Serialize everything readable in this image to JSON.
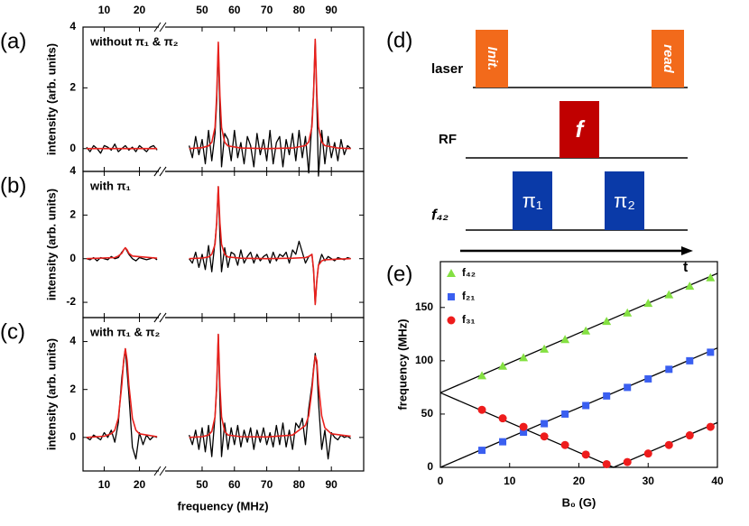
{
  "chart_data": [
    {
      "type": "line",
      "panel_label": "(a)",
      "annotation": "without π₁ & π₂",
      "ylabel": "intensity (arb. units)",
      "xlim": [
        [
          4,
          26
        ],
        [
          38,
          100
        ]
      ],
      "xticks": [
        10,
        20,
        50,
        60,
        70,
        80,
        90
      ],
      "xtick_labels": "top",
      "xbreak": true,
      "ylim": [
        -0.75,
        4
      ],
      "yticks": [
        0,
        2,
        4
      ],
      "series": [
        {
          "color": "#000000",
          "x": [
            5,
            6,
            7,
            8,
            9,
            10,
            11,
            12,
            13,
            14,
            15,
            16,
            17,
            18,
            19,
            20,
            21,
            22,
            23,
            24,
            25,
            46,
            47,
            48,
            49,
            50,
            51,
            52,
            53,
            54,
            54.5,
            55,
            55.5,
            56,
            57,
            58,
            59,
            60,
            61,
            62,
            63,
            64,
            65,
            66,
            67,
            68,
            69,
            70,
            71,
            72,
            73,
            74,
            75,
            76,
            77,
            78,
            79,
            80,
            81,
            82,
            83,
            84,
            84.5,
            85,
            85.5,
            86,
            87,
            88,
            89,
            90,
            91,
            92,
            93,
            94,
            95,
            96
          ],
          "values": [
            0.05,
            -0.1,
            0.1,
            0.0,
            -0.15,
            0.1,
            0.05,
            -0.05,
            0.15,
            -0.1,
            0.0,
            0.1,
            -0.05,
            0.05,
            -0.1,
            0.1,
            0.0,
            -0.1,
            0.05,
            0.1,
            -0.05,
            0.1,
            -0.3,
            0.4,
            -0.2,
            0.3,
            -0.5,
            0.6,
            -0.4,
            0.5,
            1.5,
            3.4,
            1.2,
            -0.6,
            0.5,
            0.3,
            -0.4,
            0.6,
            -0.3,
            0.2,
            -0.5,
            0.4,
            0.1,
            -0.6,
            0.5,
            -0.2,
            0.3,
            -0.4,
            0.6,
            -0.5,
            0.2,
            0.4,
            -0.6,
            0.3,
            -0.2,
            0.5,
            -0.4,
            0.6,
            -0.3,
            0.4,
            -0.8,
            0.9,
            1.9,
            3.6,
            1.5,
            -0.9,
            0.6,
            -0.5,
            0.4,
            -0.3,
            0.2,
            -0.4,
            0.3,
            -0.2,
            0.1,
            0.0
          ]
        },
        {
          "color": "#e8201c",
          "x": [
            5,
            25,
            46,
            50,
            52,
            53,
            54,
            54.5,
            55,
            55.5,
            56,
            57,
            58,
            62,
            70,
            78,
            82,
            83,
            84,
            84.5,
            85,
            85.5,
            86,
            87,
            88,
            92,
            96
          ],
          "values": [
            0,
            0,
            0,
            0.03,
            0.09,
            0.21,
            0.7,
            1.75,
            3.5,
            1.75,
            0.7,
            0.21,
            0.09,
            0.02,
            0,
            0.02,
            0.1,
            0.22,
            0.72,
            1.8,
            3.6,
            1.8,
            0.72,
            0.22,
            0.1,
            0.02,
            0
          ]
        }
      ]
    },
    {
      "type": "line",
      "panel_label": "(b)",
      "annotation": "with π₁",
      "ylabel": "intensity (arb. units)",
      "xlim": [
        [
          4,
          26
        ],
        [
          38,
          100
        ]
      ],
      "xticks": [
        10,
        20,
        50,
        60,
        70,
        80,
        90
      ],
      "xbreak": true,
      "ylim": [
        -2.7,
        4
      ],
      "yticks": [
        -2,
        0,
        2,
        4
      ],
      "series": [
        {
          "color": "#000000",
          "x": [
            5,
            6,
            7,
            8,
            9,
            10,
            11,
            12,
            13,
            14,
            15,
            16,
            17,
            18,
            19,
            20,
            21,
            22,
            23,
            24,
            25,
            46,
            47,
            48,
            49,
            50,
            51,
            52,
            53,
            54,
            54.5,
            55,
            55.5,
            56,
            57,
            58,
            59,
            60,
            61,
            62,
            63,
            64,
            65,
            66,
            67,
            68,
            69,
            70,
            71,
            72,
            73,
            74,
            75,
            76,
            77,
            78,
            79,
            80,
            81,
            82,
            83,
            84,
            84.5,
            85,
            85.5,
            86,
            87,
            88,
            89,
            90,
            91,
            92,
            93,
            94,
            95,
            96
          ],
          "values": [
            0,
            -0.05,
            0.05,
            -0.1,
            0.05,
            0.0,
            -0.05,
            0.1,
            0.0,
            0.05,
            0.3,
            0.5,
            0.2,
            0.0,
            -0.1,
            0.05,
            0.0,
            -0.05,
            0.0,
            0.05,
            -0.05,
            0.0,
            -0.2,
            0.3,
            -0.4,
            0.2,
            -0.5,
            0.6,
            -0.6,
            0.8,
            1.6,
            3.3,
            1.0,
            -0.6,
            0.5,
            -0.4,
            0.3,
            0.2,
            -0.3,
            0.4,
            -0.2,
            0.1,
            0.3,
            -0.2,
            0.2,
            -0.1,
            0.1,
            0.2,
            -0.2,
            0.3,
            -0.1,
            0.2,
            0.1,
            0.3,
            -0.2,
            0.4,
            0.2,
            0.8,
            0.3,
            -0.2,
            0.1,
            0.2,
            -0.6,
            -2.1,
            -1.0,
            -0.3,
            0.2,
            -0.1,
            0.1,
            0.0,
            -0.1,
            0.05,
            0.0,
            -0.05,
            0.05,
            0.0
          ]
        },
        {
          "color": "#e8201c",
          "x": [
            5,
            13,
            14,
            15,
            15.5,
            16,
            16.5,
            17,
            18,
            25,
            46,
            50,
            52,
            53,
            54,
            54.5,
            55,
            55.5,
            56,
            57,
            58,
            62,
            70,
            78,
            82,
            83,
            84,
            84.5,
            85,
            85.5,
            86,
            87,
            88,
            92,
            96
          ],
          "values": [
            0,
            0.05,
            0.12,
            0.25,
            0.4,
            0.5,
            0.4,
            0.25,
            0.12,
            0.02,
            0,
            0.03,
            0.08,
            0.2,
            0.66,
            1.65,
            3.3,
            1.65,
            0.66,
            0.2,
            0.08,
            0.02,
            0,
            0.02,
            0.05,
            0.1,
            0.2,
            -0.5,
            -2.1,
            -1.0,
            -0.3,
            -0.1,
            -0.05,
            -0.02,
            0
          ]
        }
      ]
    },
    {
      "type": "line",
      "panel_label": "(c)",
      "annotation": "with π₁ & π₂",
      "ylabel": "intensity (arb. units)",
      "xlabel": "frequency (MHz)",
      "xlim": [
        [
          4,
          26
        ],
        [
          38,
          100
        ]
      ],
      "xticks": [
        10,
        20,
        50,
        60,
        70,
        80,
        90
      ],
      "xtick_labels": "bottom",
      "xbreak": true,
      "ylim": [
        -1.4,
        5
      ],
      "yticks": [
        0,
        2,
        4
      ],
      "series": [
        {
          "color": "#000000",
          "x": [
            5,
            6,
            7,
            8,
            9,
            10,
            11,
            12,
            13,
            14,
            15,
            16,
            17,
            18,
            19,
            20,
            21,
            22,
            23,
            24,
            25,
            46,
            47,
            48,
            49,
            50,
            51,
            52,
            53,
            54,
            54.5,
            55,
            55.5,
            56,
            57,
            58,
            59,
            60,
            61,
            62,
            63,
            64,
            65,
            66,
            67,
            68,
            69,
            70,
            71,
            72,
            73,
            74,
            75,
            76,
            77,
            78,
            79,
            80,
            81,
            82,
            83,
            84,
            84.5,
            85,
            85.5,
            86,
            87,
            88,
            89,
            90,
            91,
            92,
            93,
            94,
            95,
            96
          ],
          "values": [
            0,
            -0.1,
            0.1,
            0,
            -0.1,
            0.2,
            0,
            0.3,
            -0.2,
            0.6,
            2.5,
            3.7,
            1.8,
            -0.4,
            -0.9,
            0.2,
            -0.3,
            0.1,
            -0.1,
            0.05,
            0,
            0.1,
            -0.3,
            0.3,
            -0.5,
            0.4,
            -0.6,
            0.5,
            -0.8,
            0.9,
            2.0,
            4.3,
            1.5,
            -0.8,
            0.6,
            -0.5,
            0.4,
            -0.3,
            0.5,
            -0.4,
            0.3,
            -0.2,
            0.4,
            -0.5,
            0.3,
            -0.2,
            0.4,
            -0.3,
            0.2,
            -0.4,
            0.5,
            -0.3,
            0.6,
            -0.4,
            0.3,
            -0.5,
            0.6,
            0.4,
            0.8,
            -0.3,
            1.2,
            2.2,
            2.9,
            3.5,
            3.0,
            1.5,
            -0.5,
            0.3,
            -0.9,
            0.2,
            0.0,
            -0.1,
            0.1,
            0.0,
            0.05,
            -0.05
          ]
        },
        {
          "color": "#e8201c",
          "x": [
            5,
            10,
            12,
            13,
            14,
            15,
            15.5,
            16,
            16.5,
            17,
            18,
            19,
            20,
            25,
            46,
            50,
            52,
            53,
            54,
            54.5,
            55,
            55.5,
            56,
            57,
            58,
            62,
            70,
            78,
            82,
            83,
            84,
            84.5,
            85,
            85.5,
            86,
            87,
            88,
            90,
            96
          ],
          "values": [
            0,
            0.05,
            0.15,
            0.3,
            0.8,
            2.2,
            3.2,
            3.7,
            3.2,
            2.2,
            0.8,
            0.3,
            0.15,
            0.03,
            0,
            0.03,
            0.1,
            0.25,
            0.86,
            2.15,
            4.3,
            2.15,
            0.86,
            0.25,
            0.1,
            0.03,
            0.02,
            0.1,
            0.5,
            0.9,
            2.0,
            2.8,
            3.4,
            3.2,
            2.2,
            0.9,
            0.4,
            0.15,
            0.05
          ]
        }
      ]
    },
    {
      "type": "scatter",
      "panel_label": "(e)",
      "xlabel": "B₀ (G)",
      "ylabel": "frequency (MHz)",
      "x": [
        6,
        9,
        12,
        15,
        18,
        21,
        24,
        27,
        30,
        33,
        36,
        39
      ],
      "xlim": [
        0,
        40
      ],
      "ylim": [
        0,
        193
      ],
      "xticks": [
        0,
        10,
        20,
        30,
        40
      ],
      "yticks": [
        0,
        50,
        100,
        150
      ],
      "legend": "upper left",
      "series": [
        {
          "name": "f₄₂",
          "color": "#84e042",
          "marker": "triangle",
          "values": [
            86,
            95,
            103,
            111,
            120,
            128,
            137,
            145,
            154,
            162,
            170,
            178
          ]
        },
        {
          "name": "f₂₁",
          "color": "#3a5ff0",
          "marker": "square",
          "values": [
            16,
            24,
            33,
            41,
            50,
            58,
            67,
            75,
            83,
            92,
            100,
            108
          ]
        },
        {
          "name": "f₃₁",
          "color": "#ee1c1c",
          "marker": "circle",
          "values": [
            54,
            46,
            38,
            29,
            21,
            12,
            3,
            5,
            13,
            21,
            30,
            38
          ]
        }
      ],
      "fit_lines": [
        {
          "color": "#000000",
          "x": [
            0,
            40
          ],
          "values": [
            70,
            182
          ]
        },
        {
          "color": "#000000",
          "x": [
            0,
            40
          ],
          "values": [
            0,
            112
          ]
        },
        {
          "color": "#000000",
          "x": [
            0,
            25,
            40
          ],
          "values": [
            70,
            0,
            42
          ]
        }
      ]
    }
  ],
  "pulse_diagram": {
    "panel_label": "(d)",
    "rows": [
      "laser",
      "RF",
      "f₄₂"
    ],
    "pulses": [
      "Init.",
      "read",
      "f",
      "π₁",
      "π₂"
    ],
    "time_label": "t"
  }
}
